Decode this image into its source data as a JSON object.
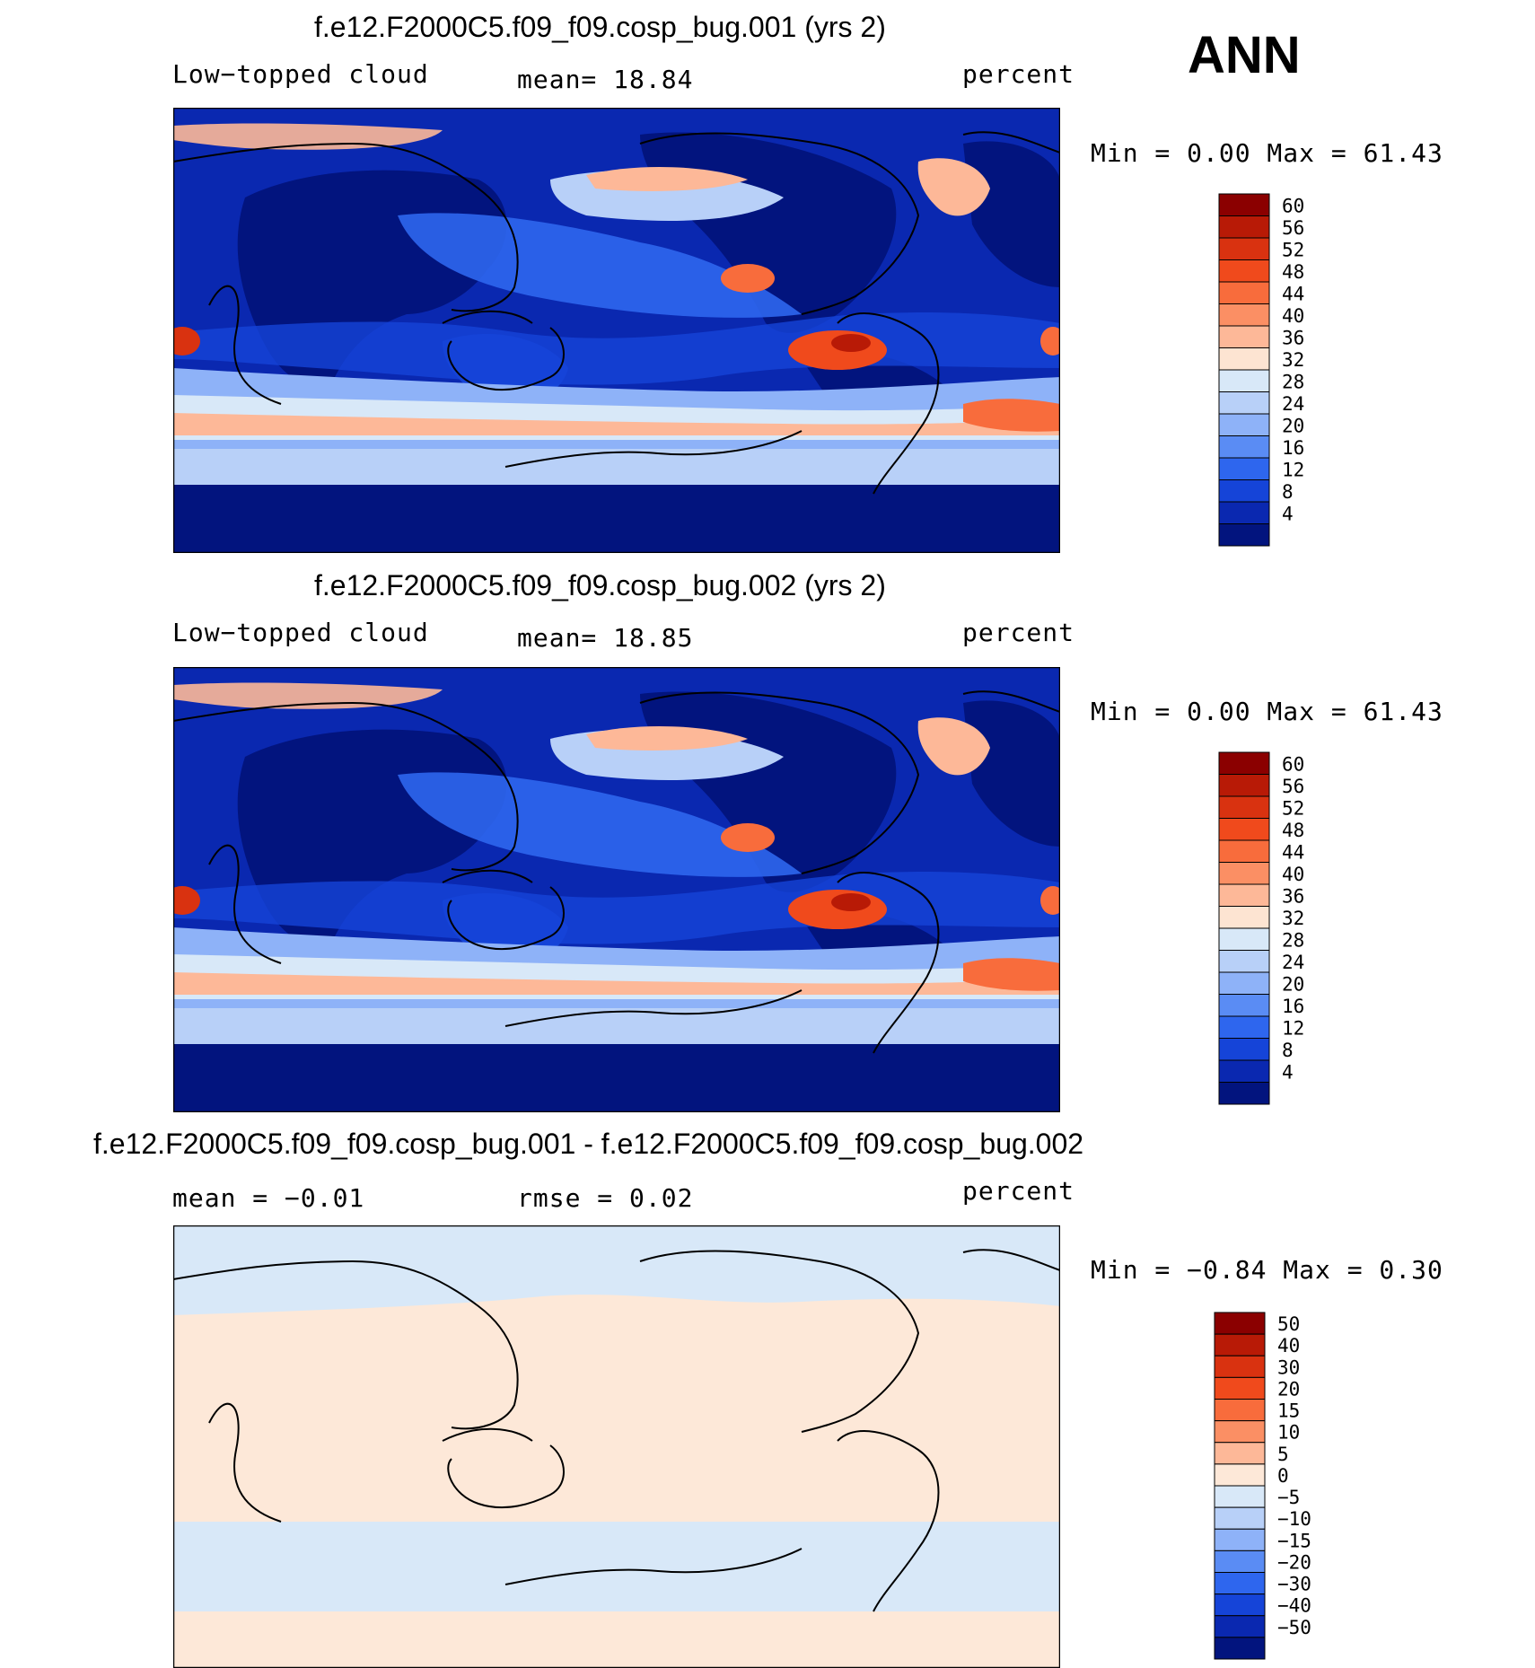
{
  "season": "ANN",
  "units": "percent",
  "panels": [
    {
      "title": "f.e12.F2000C5.f09_f09.cosp_bug.001 (yrs 2)",
      "variable": "Low−topped cloud",
      "mean_text": "mean=   18.84",
      "minmax_text": "Min =    0.00 Max =   61.43",
      "colorbar": "abs"
    },
    {
      "title": "f.e12.F2000C5.f09_f09.cosp_bug.002 (yrs 2)",
      "variable": "Low−topped cloud",
      "mean_text": "mean=   18.85",
      "minmax_text": "Min =    0.00 Max =   61.43",
      "colorbar": "abs"
    },
    {
      "title": "f.e12.F2000C5.f09_f09.cosp_bug.001 - f.e12.F2000C5.f09_f09.cosp_bug.002",
      "mean_text": "mean =   −0.01",
      "rmse_text": "rmse =    0.02",
      "minmax_text": "Min =  −0.84 Max =    0.30",
      "colorbar": "diff"
    }
  ],
  "colorbars": {
    "abs": {
      "levels": [
        "60",
        "56",
        "52",
        "48",
        "44",
        "40",
        "36",
        "32",
        "28",
        "24",
        "20",
        "16",
        "12",
        "8",
        "4"
      ],
      "colors": [
        "#8b0000",
        "#b81a06",
        "#d93210",
        "#f04a1c",
        "#f86c3c",
        "#fb8f64",
        "#fdb898",
        "#fde4d2",
        "#d8e8f8",
        "#b8d0f8",
        "#8eb2f8",
        "#5a8cf4",
        "#2e66ee",
        "#1544d8",
        "#0a28b0",
        "#02147e"
      ]
    },
    "diff": {
      "levels": [
        "50",
        "40",
        "30",
        "20",
        "15",
        "10",
        "5",
        "0",
        "−5",
        "−10",
        "−15",
        "−20",
        "−30",
        "−40",
        "−50"
      ],
      "colors": [
        "#8b0000",
        "#b81a06",
        "#d93210",
        "#f04a1c",
        "#f86c3c",
        "#fb8f64",
        "#fdb898",
        "#fde8d8",
        "#d8e8f8",
        "#b8d0f8",
        "#8eb2f8",
        "#5a8cf4",
        "#2e66ee",
        "#1544d8",
        "#0a28b0",
        "#02147e"
      ]
    }
  },
  "chart_data": [
    {
      "type": "heatmap",
      "title": "f.e12.F2000C5.f09_f09.cosp_bug.001 (yrs 2)",
      "variable": "Low−topped cloud",
      "units": "percent",
      "mean": 18.84,
      "min": 0.0,
      "max": 61.43,
      "contour_levels": [
        4,
        8,
        12,
        16,
        20,
        24,
        28,
        32,
        36,
        40,
        44,
        48,
        52,
        56,
        60
      ]
    },
    {
      "type": "heatmap",
      "title": "f.e12.F2000C5.f09_f09.cosp_bug.002 (yrs 2)",
      "variable": "Low−topped cloud",
      "units": "percent",
      "mean": 18.85,
      "min": 0.0,
      "max": 61.43,
      "contour_levels": [
        4,
        8,
        12,
        16,
        20,
        24,
        28,
        32,
        36,
        40,
        44,
        48,
        52,
        56,
        60
      ]
    },
    {
      "type": "heatmap",
      "title": "f.e12.F2000C5.f09_f09.cosp_bug.001 - f.e12.F2000C5.f09_f09.cosp_bug.002",
      "units": "percent",
      "mean": -0.01,
      "rmse": 0.02,
      "min": -0.84,
      "max": 0.3,
      "contour_levels": [
        -50,
        -40,
        -30,
        -20,
        -15,
        -10,
        -5,
        0,
        5,
        10,
        15,
        20,
        30,
        40,
        50
      ]
    }
  ]
}
